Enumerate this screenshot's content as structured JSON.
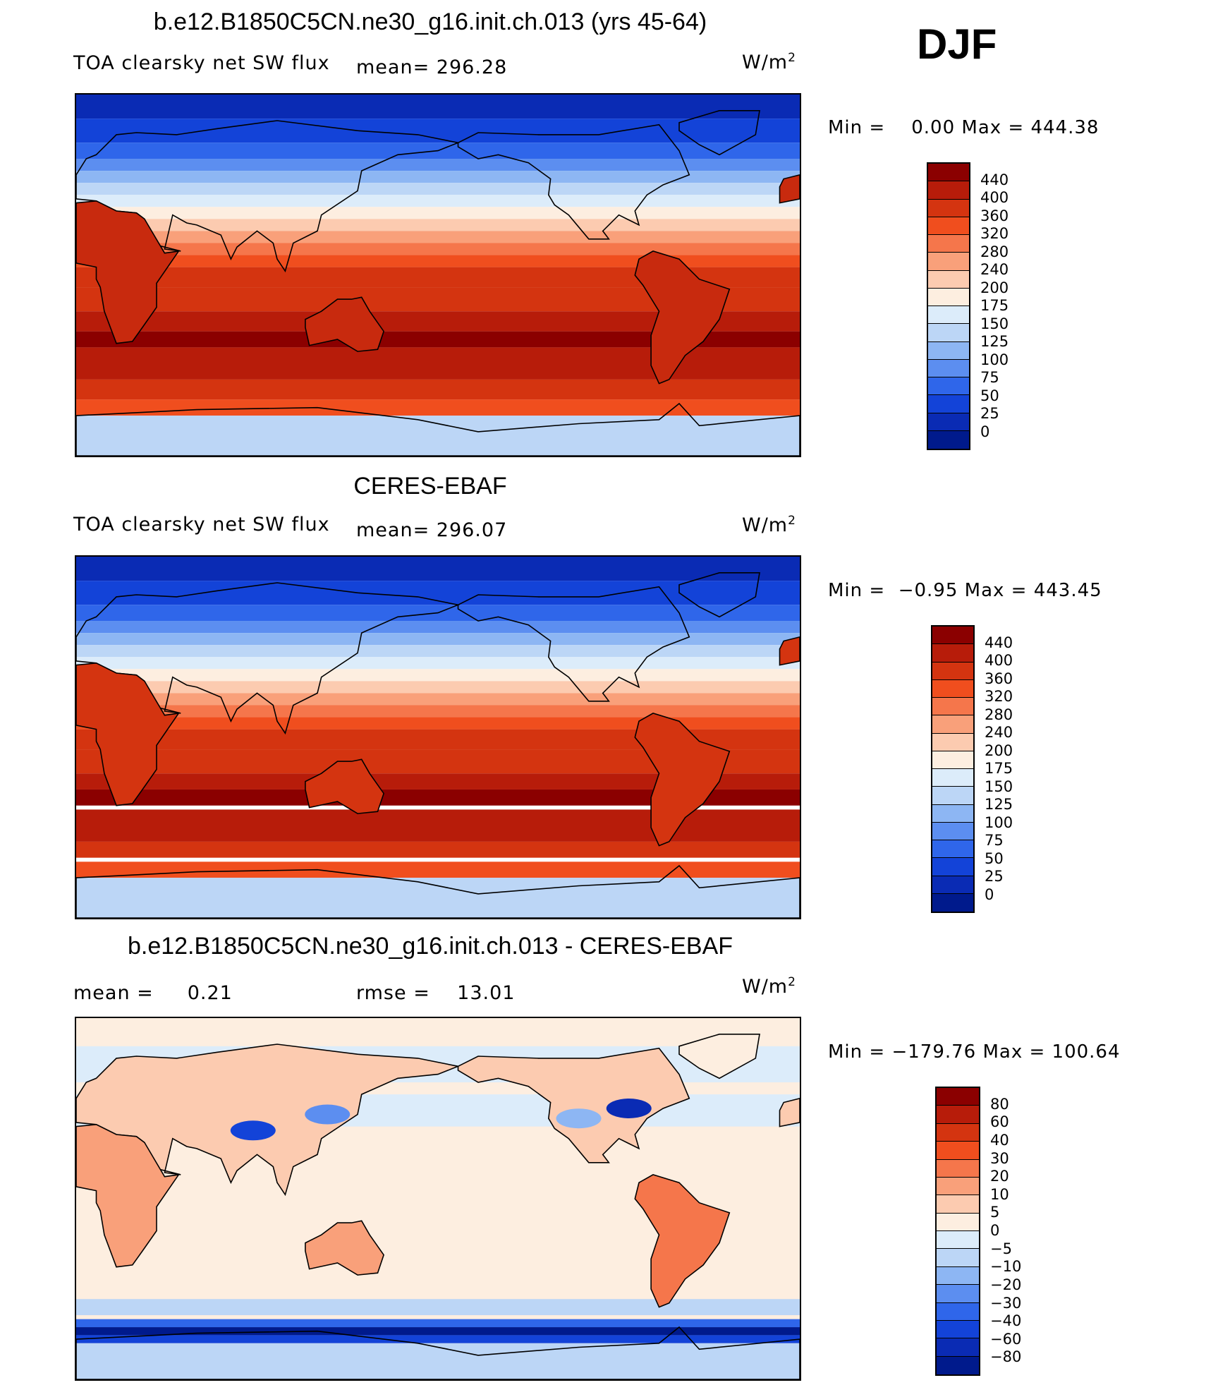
{
  "season": "DJF",
  "units": "W/m",
  "units_sup": "2",
  "panels": [
    {
      "title": "b.e12.B1850C5CN.ne30_g16.init.ch.013 (yrs 45-64)",
      "left_label": "TOA clearsky net SW flux",
      "stat1": "mean= 296.28",
      "stat2": "",
      "minmax": "Min =    0.00 Max = 444.38",
      "colorbar": {
        "labels": [
          "440",
          "400",
          "360",
          "320",
          "280",
          "240",
          "200",
          "175",
          "150",
          "125",
          "100",
          "75",
          "50",
          "25",
          "0"
        ],
        "colors": [
          "#8b0000",
          "#b71c0a",
          "#d43410",
          "#f04e1e",
          "#f5764b",
          "#f9a07a",
          "#fccbb0",
          "#fdeee0",
          "#dcecfa",
          "#bcd6f6",
          "#8db6f3",
          "#5c8ef0",
          "#2f66ea",
          "#1343d8",
          "#0a2bb4",
          "#001a8c"
        ]
      },
      "map_type": "absolute"
    },
    {
      "title": "CERES-EBAF",
      "left_label": "TOA clearsky net SW flux",
      "stat1": "mean= 296.07",
      "stat2": "",
      "minmax": "Min =  −0.95 Max = 443.45",
      "colorbar": {
        "labels": [
          "440",
          "400",
          "360",
          "320",
          "280",
          "240",
          "200",
          "175",
          "150",
          "125",
          "100",
          "75",
          "50",
          "25",
          "0"
        ],
        "colors": [
          "#8b0000",
          "#b71c0a",
          "#d43410",
          "#f04e1e",
          "#f5764b",
          "#f9a07a",
          "#fccbb0",
          "#fdeee0",
          "#dcecfa",
          "#bcd6f6",
          "#8db6f3",
          "#5c8ef0",
          "#2f66ea",
          "#1343d8",
          "#0a2bb4",
          "#001a8c"
        ]
      },
      "map_type": "absolute"
    },
    {
      "title": "b.e12.B1850C5CN.ne30_g16.init.ch.013 - CERES-EBAF",
      "left_label": "mean =     0.21",
      "stat1": "rmse =    13.01",
      "stat2": "",
      "minmax": "Min = −179.76 Max = 100.64",
      "colorbar": {
        "labels": [
          "80",
          "60",
          "40",
          "30",
          "20",
          "10",
          "5",
          "0",
          "−5",
          "−10",
          "−20",
          "−30",
          "−40",
          "−60",
          "−80"
        ],
        "colors": [
          "#8b0000",
          "#b71c0a",
          "#d43410",
          "#f04e1e",
          "#f5764b",
          "#f9a07a",
          "#fccbb0",
          "#fdeee0",
          "#dcecfa",
          "#bcd6f6",
          "#8db6f3",
          "#5c8ef0",
          "#2f66ea",
          "#1343d8",
          "#0a2bb4",
          "#001a8c"
        ]
      },
      "map_type": "difference"
    }
  ]
}
